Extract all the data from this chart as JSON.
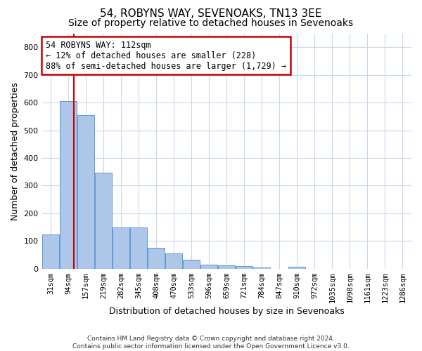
{
  "title": "54, ROBYNS WAY, SEVENOAKS, TN13 3EE",
  "subtitle": "Size of property relative to detached houses in Sevenoaks",
  "xlabel": "Distribution of detached houses by size in Sevenoaks",
  "ylabel": "Number of detached properties",
  "categories": [
    "31sqm",
    "94sqm",
    "157sqm",
    "219sqm",
    "282sqm",
    "345sqm",
    "408sqm",
    "470sqm",
    "533sqm",
    "596sqm",
    "659sqm",
    "721sqm",
    "784sqm",
    "847sqm",
    "910sqm",
    "972sqm",
    "1035sqm",
    "1098sqm",
    "1161sqm",
    "1223sqm",
    "1286sqm"
  ],
  "values": [
    125,
    605,
    555,
    348,
    148,
    148,
    75,
    55,
    32,
    15,
    13,
    10,
    5,
    0,
    8,
    0,
    0,
    0,
    0,
    0,
    0
  ],
  "bar_color": "#aec6e8",
  "bar_edge_color": "#5b9bd5",
  "grid_color": "#c8d8e8",
  "background_color": "#ffffff",
  "property_sqm": 112,
  "annotation_text": "54 ROBYNS WAY: 112sqm\n← 12% of detached houses are smaller (228)\n88% of semi-detached houses are larger (1,729) →",
  "annotation_box_color": "#ffffff",
  "annotation_box_edge": "#cc0000",
  "property_line_color": "#cc0000",
  "footer": "Contains HM Land Registry data © Crown copyright and database right 2024.\nContains public sector information licensed under the Open Government Licence v3.0.",
  "ylim": [
    0,
    850
  ],
  "title_fontsize": 11,
  "subtitle_fontsize": 10,
  "tick_fontsize": 7.5,
  "ylabel_fontsize": 9,
  "xlabel_fontsize": 9,
  "annotation_fontsize": 8.5,
  "footer_fontsize": 6.5
}
